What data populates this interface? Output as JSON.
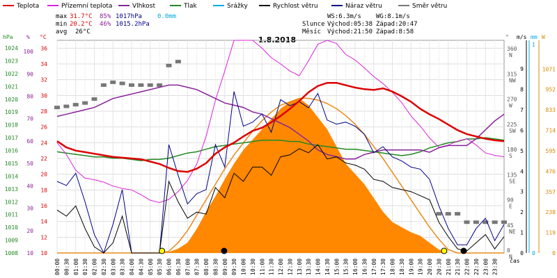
{
  "chart_data": {
    "type": "line",
    "title": "1.8.2018",
    "legend": [
      {
        "label": "Teplota",
        "color": "#dd0000"
      },
      {
        "label": "Přízemní teplota",
        "color": "#dd22dd"
      },
      {
        "label": "Vlhkost",
        "color": "#882299"
      },
      {
        "label": "Tlak",
        "color": "#228822"
      },
      {
        "label": "Srážky",
        "color": "#00aadd"
      },
      {
        "label": "Rychlost větru",
        "color": "#000000"
      },
      {
        "label": "Náraz větru",
        "color": "#000088"
      },
      {
        "label": "Směr větru",
        "color": "#777777"
      }
    ],
    "stats": {
      "max_label": "max",
      "min_label": "min",
      "avg_label": "avg",
      "max_temp": "31.7°C",
      "max_hum": "85%",
      "max_press": "1017hPa",
      "rain": "0.0mm",
      "min_temp": "20.2°C",
      "min_hum": "46%",
      "min_press": "1015.2hPa",
      "avg_temp": "26°C",
      "ws": "WS:6.3m/s",
      "wg": "WG:8.1m/s",
      "sun_label": "Slunce",
      "sunrise": "Východ:05:38",
      "sunset": "Západ:20:47",
      "moon_label": "Měsíc",
      "moonrise": "Východ:21:50",
      "moonset": "Západ:8:58"
    },
    "axes": {
      "press_unit": "hPa",
      "hum_unit": "%",
      "temp_unit": "°C",
      "dir_unit": "°",
      "wind_unit": "m/s",
      "rain_unit": "mm",
      "solar_unit": "W",
      "time_unit": "čas",
      "press_ticks": [
        "1024",
        "1023",
        "1022",
        "1021",
        "1020",
        "1019",
        "1018",
        "1017",
        "1016",
        "1015",
        "1014",
        "1013",
        "1012",
        "1011",
        "1010",
        "1009",
        "1008"
      ],
      "hum_ticks": [
        "100",
        "90",
        "80",
        "70",
        "60",
        "50",
        "40",
        "30",
        "20",
        "10"
      ],
      "temp_ticks": [
        "36",
        "34",
        "32",
        "30",
        "28",
        "26",
        "24",
        "22",
        "20",
        "18",
        "16",
        "14",
        "12",
        "10"
      ],
      "dir_ticks": [
        "360\nN",
        "315\nNW",
        "270\nW",
        "225\nSW",
        "180\nS",
        "135\nSE",
        "90\nE",
        "45\nNE",
        "0\nN"
      ],
      "wind_ticks": [
        "9",
        "8",
        "7",
        "6",
        "5",
        "4",
        "3",
        "2",
        "1",
        "0"
      ],
      "rain_ticks": [
        "1",
        "0"
      ],
      "solar_ticks": [
        "1071",
        "952",
        "833",
        "714",
        "595",
        "476",
        "357",
        "238",
        "119",
        "0"
      ],
      "x_ticks": [
        "00:00",
        "00:30",
        "01:00",
        "01:30",
        "02:00",
        "02:30",
        "03:00",
        "03:30",
        "04:00",
        "04:30",
        "05:00",
        "05:30",
        "06:00",
        "06:30",
        "07:00",
        "07:30",
        "08:00",
        "08:30",
        "09:00",
        "09:30",
        "10:00",
        "10:30",
        "11:00",
        "11:30",
        "12:00",
        "12:30",
        "13:00",
        "13:30",
        "14:00",
        "14:30",
        "15:00",
        "15:30",
        "16:00",
        "16:30",
        "17:00",
        "17:30",
        "18:00",
        "18:30",
        "19:00",
        "19:30",
        "20:00",
        "20:30",
        "21:00",
        "21:30",
        "22:00",
        "22:30",
        "23:00",
        "23:30"
      ],
      "temp_range": [
        10,
        37
      ],
      "hum_range": [
        10,
        105
      ],
      "press_range": [
        1008,
        1024.6
      ],
      "dir_range": [
        0,
        380
      ],
      "wind_range": [
        0,
        10.4
      ],
      "solar_range": [
        0,
        1238
      ]
    },
    "series": {
      "hours": [
        0,
        0.5,
        1,
        1.5,
        2,
        2.5,
        3,
        3.5,
        4,
        4.5,
        5,
        5.5,
        6,
        6.5,
        7,
        7.5,
        8,
        8.5,
        9,
        9.5,
        10,
        10.5,
        11,
        11.5,
        12,
        12.5,
        13,
        13.5,
        14,
        14.5,
        15,
        15.5,
        16,
        16.5,
        17,
        17.5,
        18,
        18.5,
        19,
        19.5,
        20,
        20.5,
        21,
        21.5,
        22,
        22.5,
        23,
        23.5,
        24
      ],
      "temperature": [
        24.2,
        23.4,
        23,
        22.8,
        22.6,
        22.4,
        22.2,
        22.1,
        22,
        21.9,
        21.6,
        21.3,
        20.8,
        20.4,
        20.3,
        20.7,
        21.4,
        22.6,
        23.4,
        24,
        24.8,
        25.5,
        25.9,
        26.6,
        27.4,
        28.3,
        29.3,
        30.4,
        31.2,
        31.6,
        31.6,
        31.3,
        31,
        30.8,
        30.7,
        30.9,
        30.5,
        29.9,
        29.2,
        28.3,
        27.6,
        27,
        26.3,
        25.6,
        25.1,
        24.8,
        24.5,
        24.3,
        24.2
      ],
      "ground_temp": [
        24,
        22.5,
        20.5,
        19.5,
        19.3,
        19,
        18.5,
        18.2,
        18,
        17.4,
        16.7,
        16.4,
        16.8,
        17.8,
        19.2,
        21.3,
        24.8,
        29.4,
        33.1,
        37,
        37,
        37,
        36,
        34.8,
        34,
        33.1,
        32.5,
        34.4,
        36.5,
        37,
        36.6,
        35.2,
        34.5,
        33.5,
        32.4,
        31.5,
        30.4,
        29.1,
        27.4,
        26.1,
        24.6,
        23.4,
        23.7,
        24.2,
        24.5,
        23.7,
        22.7,
        22.4,
        22.2
      ],
      "humidity": [
        71,
        72,
        73,
        74,
        75,
        77,
        79,
        80,
        81,
        82,
        83,
        84,
        85,
        85,
        84,
        83,
        81,
        79,
        77,
        76,
        75,
        73,
        72,
        70,
        68,
        66,
        63,
        60,
        56,
        54,
        53,
        52,
        52,
        54,
        55,
        56,
        56,
        56,
        56,
        56,
        55,
        57,
        58,
        58,
        58,
        61,
        65,
        69,
        72
      ],
      "pressure": [
        1015.9,
        1015.8,
        1015.7,
        1015.6,
        1015.5,
        1015.5,
        1015.4,
        1015.4,
        1015.3,
        1015.2,
        1015.3,
        1015.3,
        1015.4,
        1015.6,
        1015.8,
        1015.9,
        1016.1,
        1016.3,
        1016.4,
        1016.5,
        1016.6,
        1016.7,
        1016.8,
        1016.8,
        1016.8,
        1016.7,
        1016.7,
        1016.5,
        1016.4,
        1016.3,
        1016.2,
        1016.1,
        1016.1,
        1016,
        1015.9,
        1015.8,
        1015.7,
        1015.6,
        1015.7,
        1015.9,
        1016.2,
        1016.4,
        1016.6,
        1016.7,
        1016.9,
        1016.9,
        1017,
        1016.9,
        1016.8
      ],
      "wind_speed": [
        2.1,
        1.8,
        2.3,
        1.2,
        0.3,
        0,
        0.5,
        1.8,
        0,
        0,
        0,
        0,
        3.5,
        2.5,
        1.7,
        2,
        1.9,
        3.2,
        2.7,
        3.9,
        3.5,
        4.2,
        4.2,
        3.8,
        4.7,
        4.8,
        5.1,
        4.9,
        5.3,
        4.6,
        4.7,
        4.4,
        4.3,
        4.1,
        3.6,
        3.5,
        3.2,
        3.1,
        3,
        2.8,
        2.6,
        1.5,
        0.8,
        0.2,
        0.1,
        0.5,
        0.9,
        0.2,
        0.8
      ],
      "wind_gust": [
        3.5,
        3.3,
        3.9,
        2.5,
        0.9,
        0,
        1.4,
        3.1,
        0,
        0,
        0,
        0,
        5.3,
        3.8,
        2.4,
        2.9,
        3.1,
        5.3,
        4.2,
        7.9,
        6.2,
        6.4,
        6.8,
        5.9,
        7.5,
        7.2,
        7.4,
        7.1,
        7.8,
        6.5,
        6.3,
        6.4,
        6.2,
        5.8,
        4.9,
        5.2,
        4.7,
        4.5,
        4.2,
        4.1,
        3.6,
        2.3,
        1.2,
        0.4,
        0.4,
        1.2,
        1.7,
        0.6,
        1.4
      ],
      "wind_dir": [
        260,
        262,
        265,
        268,
        275,
        300,
        305,
        303,
        300,
        300,
        300,
        300,
        335,
        342,
        null,
        null,
        null,
        null,
        null,
        null,
        null,
        null,
        null,
        null,
        null,
        null,
        null,
        null,
        null,
        null,
        null,
        null,
        null,
        null,
        null,
        null,
        null,
        null,
        null,
        null,
        null,
        70,
        70,
        70,
        55,
        55,
        55,
        55,
        55
      ],
      "solar": [
        0,
        0,
        0,
        0,
        0,
        0,
        0,
        0,
        0,
        0,
        0,
        0,
        5,
        25,
        60,
        140,
        240,
        330,
        430,
        520,
        600,
        660,
        720,
        780,
        840,
        880,
        900,
        860,
        790,
        720,
        620,
        520,
        460,
        400,
        320,
        240,
        180,
        150,
        120,
        100,
        60,
        20,
        0,
        0,
        0,
        0,
        0,
        0,
        0
      ],
      "solar_max": [
        0,
        0,
        0,
        0,
        0,
        0,
        0,
        0,
        0,
        0,
        0,
        0,
        10,
        60,
        130,
        220,
        310,
        400,
        490,
        570,
        640,
        710,
        770,
        820,
        860,
        880,
        900,
        900,
        890,
        870,
        840,
        800,
        750,
        690,
        620,
        550,
        470,
        390,
        310,
        230,
        150,
        80,
        20,
        0,
        0,
        0,
        0,
        0,
        0
      ]
    },
    "markers": {
      "sunrise_time": 5.63,
      "sunset_time": 20.78,
      "moonrise_time": 21.83,
      "moonset_time": 8.97
    }
  }
}
